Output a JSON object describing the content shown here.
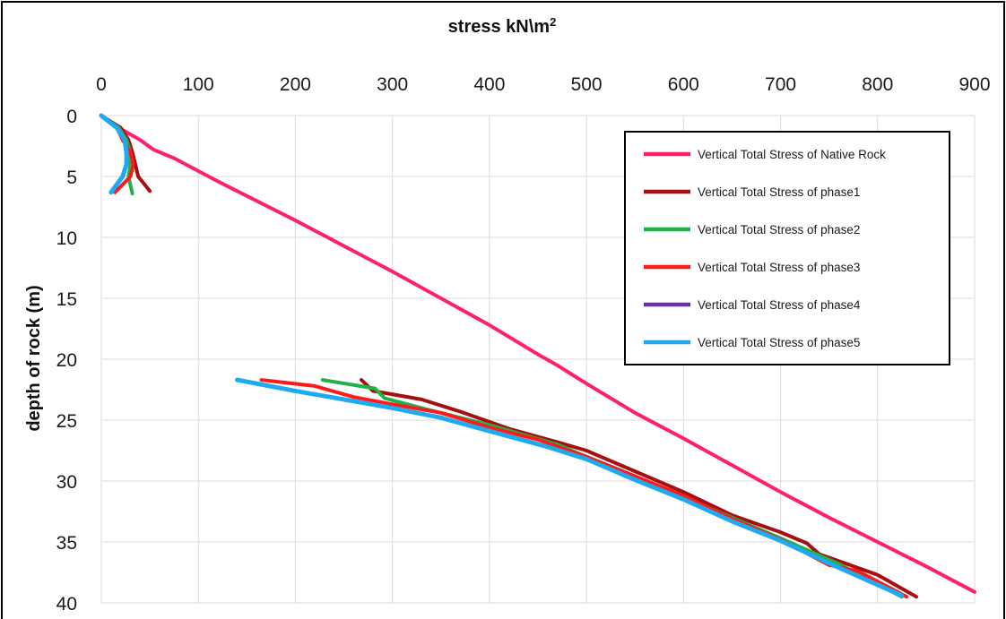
{
  "chart_data": {
    "type": "line",
    "title": "",
    "xlabel": "stress kN\\m",
    "xlabel_sup": "2",
    "ylabel": "depth of rock (m)",
    "x_axis_position": "top",
    "y_inverted": true,
    "xlim": [
      0,
      900
    ],
    "ylim": [
      0,
      40
    ],
    "x_ticks": [
      "0",
      "100",
      "200",
      "300",
      "400",
      "500",
      "600",
      "700",
      "800",
      "900"
    ],
    "y_ticks": [
      "0",
      "5",
      "10",
      "15",
      "20",
      "25",
      "30",
      "35",
      "40"
    ],
    "grid": true,
    "legend_position": "top-right",
    "series": [
      {
        "name": "Vertical Total Stress of Native Rock",
        "color": "#ff1f6f",
        "points": [
          [
            0,
            0
          ],
          [
            18,
            1
          ],
          [
            40,
            2
          ],
          [
            54,
            2.8
          ],
          [
            75,
            3.5
          ],
          [
            120,
            5.4
          ],
          [
            200,
            8.6
          ],
          [
            300,
            12.8
          ],
          [
            400,
            17.2
          ],
          [
            450,
            19.6
          ],
          [
            470,
            20.5
          ],
          [
            500,
            22
          ],
          [
            550,
            24.4
          ],
          [
            600,
            26.5
          ],
          [
            650,
            28.7
          ],
          [
            700,
            30.9
          ],
          [
            750,
            33
          ],
          [
            800,
            35
          ],
          [
            850,
            37
          ],
          [
            900,
            39.1
          ]
        ]
      },
      {
        "name": "Vertical Total Stress of phase1",
        "color": "#a50f0f",
        "points": [
          [
            0,
            0
          ],
          [
            20,
            1
          ],
          [
            28,
            2
          ],
          [
            32,
            3
          ],
          [
            35,
            4
          ],
          [
            38,
            5
          ],
          [
            50,
            6.2
          ]
        ],
        "points_b": [
          [
            268,
            21.7
          ],
          [
            280,
            22.6
          ],
          [
            330,
            23.3
          ],
          [
            370,
            24.3
          ],
          [
            420,
            25.7
          ],
          [
            470,
            26.8
          ],
          [
            500,
            27.5
          ],
          [
            550,
            29.2
          ],
          [
            600,
            30.9
          ],
          [
            650,
            32.8
          ],
          [
            700,
            34.2
          ],
          [
            727,
            35.1
          ],
          [
            740,
            36
          ],
          [
            800,
            37.7
          ],
          [
            840,
            39.5
          ]
        ]
      },
      {
        "name": "Vertical Total Stress of phase2",
        "color": "#22b04a",
        "points": [
          [
            0,
            0
          ],
          [
            18,
            1
          ],
          [
            26,
            2
          ],
          [
            30,
            3
          ],
          [
            30,
            4
          ],
          [
            28,
            5
          ],
          [
            32,
            6.4
          ]
        ],
        "points_b": [
          [
            228,
            21.7
          ],
          [
            282,
            22.4
          ],
          [
            292,
            23.2
          ],
          [
            330,
            24
          ],
          [
            400,
            25.4
          ],
          [
            470,
            27
          ],
          [
            500,
            28
          ],
          [
            550,
            29.6
          ],
          [
            600,
            31.3
          ],
          [
            650,
            33
          ],
          [
            700,
            34.7
          ],
          [
            760,
            36.8
          ],
          [
            825,
            39.5
          ]
        ]
      },
      {
        "name": "Vertical Total Stress of phase3",
        "color": "#ff1a1a",
        "points": [
          [
            0,
            0
          ],
          [
            16,
            1
          ],
          [
            22,
            2
          ],
          [
            30,
            3
          ],
          [
            33,
            4
          ],
          [
            30,
            5
          ],
          [
            14,
            6.3
          ]
        ],
        "points_b": [
          [
            165,
            21.7
          ],
          [
            220,
            22.2
          ],
          [
            260,
            23.1
          ],
          [
            300,
            23.7
          ],
          [
            350,
            24.4
          ],
          [
            400,
            25.6
          ],
          [
            450,
            26.6
          ],
          [
            500,
            28
          ],
          [
            550,
            29.6
          ],
          [
            600,
            31.2
          ],
          [
            650,
            33.1
          ],
          [
            700,
            34.8
          ],
          [
            750,
            36.9
          ],
          [
            780,
            37.4
          ],
          [
            830,
            39.5
          ]
        ]
      },
      {
        "name": "Vertical Total Stress of phase4",
        "color": "#7030a0",
        "points": [
          [
            0,
            0
          ],
          [
            16,
            1
          ],
          [
            24,
            2
          ],
          [
            26,
            3
          ],
          [
            26,
            4
          ],
          [
            22,
            5
          ],
          [
            10,
            6.3
          ]
        ],
        "points_b": [
          [
            140,
            21.7
          ],
          [
            200,
            22.6
          ],
          [
            250,
            23.3
          ],
          [
            300,
            24
          ],
          [
            350,
            24.8
          ],
          [
            400,
            25.9
          ],
          [
            460,
            27.2
          ],
          [
            500,
            28.2
          ],
          [
            550,
            29.9
          ],
          [
            600,
            31.5
          ],
          [
            650,
            33.3
          ],
          [
            700,
            34.9
          ],
          [
            760,
            37.1
          ],
          [
            825,
            39.4
          ]
        ]
      },
      {
        "name": "Vertical Total Stress of phase5",
        "color": "#1eaaf0",
        "points": [
          [
            0,
            0
          ],
          [
            16,
            1
          ],
          [
            24,
            2
          ],
          [
            26,
            3
          ],
          [
            26,
            4
          ],
          [
            22,
            5
          ],
          [
            10,
            6.3
          ]
        ],
        "points_b": [
          [
            140,
            21.7
          ],
          [
            200,
            22.6
          ],
          [
            250,
            23.3
          ],
          [
            300,
            24
          ],
          [
            350,
            24.8
          ],
          [
            400,
            25.9
          ],
          [
            460,
            27.2
          ],
          [
            500,
            28.2
          ],
          [
            550,
            29.9
          ],
          [
            600,
            31.5
          ],
          [
            650,
            33.3
          ],
          [
            700,
            34.9
          ],
          [
            760,
            37.1
          ],
          [
            825,
            39.4
          ]
        ]
      }
    ]
  }
}
